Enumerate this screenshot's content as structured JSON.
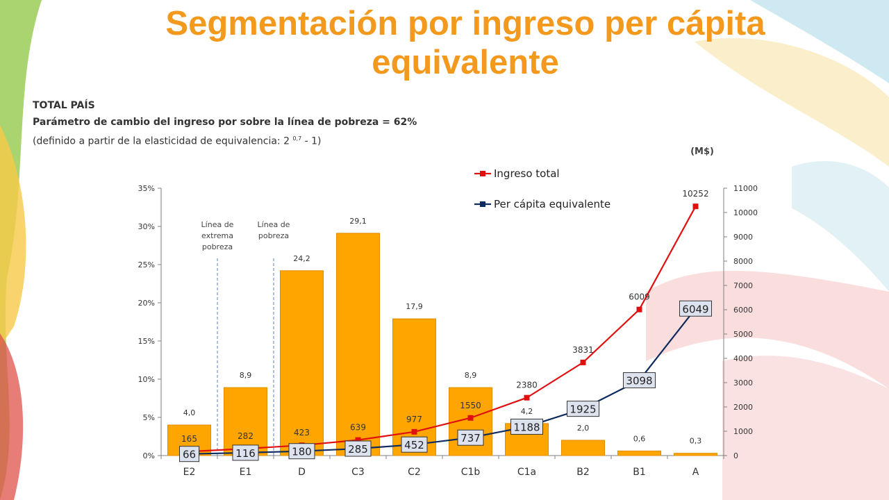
{
  "slide": {
    "title_line1": "Segmentación por ingreso per cápita",
    "title_line2": "equivalente",
    "scope_label": "TOTAL PAÍS",
    "parameter_text": "Parámetro de cambio del ingreso  por sobre la línea de pobreza = 62%",
    "definition_prefix": "(definido a partir de la elasticidad de equivalencia: 2 ",
    "definition_exponent": "0,7",
    "definition_suffix": " - 1)"
  },
  "colors": {
    "title": "#f39a1e",
    "bars": "#ffa500",
    "bar_border": "#e08c00",
    "ingreso_total_line": "#e01010",
    "per_capita_line": "#0d2b5e",
    "label_box_fill": "#dde3ee"
  },
  "chart_data": {
    "type": "bar",
    "categories": [
      "E2",
      "E1",
      "D",
      "C3",
      "C2",
      "C1b",
      "C1a",
      "B2",
      "B1",
      "A"
    ],
    "series": [
      {
        "axis": "left",
        "type": "bar",
        "values": [
          4.0,
          8.9,
          24.2,
          29.1,
          17.9,
          8.9,
          4.2,
          2.0,
          0.6,
          0.3
        ],
        "labels": [
          "4,0",
          "8,9",
          "24,2",
          "29,1",
          "17,9",
          "8,9",
          "4,2",
          "2,0",
          "0,6",
          "0,3"
        ]
      },
      {
        "name": "Ingreso total",
        "axis": "right",
        "type": "line",
        "values": [
          165,
          282,
          423,
          639,
          977,
          1550,
          2380,
          3831,
          6009,
          10252
        ]
      },
      {
        "name": "Per cápita equivalente",
        "axis": "right",
        "type": "line",
        "values": [
          66,
          116,
          180,
          285,
          452,
          737,
          1188,
          1925,
          3098,
          6049
        ]
      }
    ],
    "left_axis": {
      "min": 0,
      "max": 35,
      "step": 5,
      "ticks": [
        "0%",
        "5%",
        "10%",
        "15%",
        "20%",
        "25%",
        "30%",
        "35%"
      ]
    },
    "right_axis": {
      "min": 0,
      "max": 11000,
      "step": 1000,
      "unit_label": "(M$)"
    },
    "reference_lines": [
      {
        "after_category": "E2",
        "label_lines": [
          "Línea de",
          "extrema",
          "pobreza"
        ]
      },
      {
        "after_category": "E1",
        "label_lines": [
          "Línea de",
          "pobreza"
        ]
      }
    ],
    "legend_position": "top-right"
  }
}
